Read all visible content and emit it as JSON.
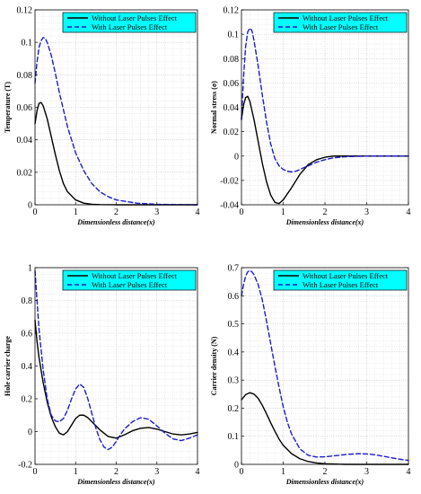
{
  "chart_data": [
    {
      "type": "line",
      "xlabel": "Dimensionless distance(x)",
      "ylabel": "Temperature (T)",
      "xlim": [
        0,
        4
      ],
      "ylim": [
        0,
        0.12
      ],
      "xticks": [
        "0",
        "1",
        "2",
        "3",
        "4"
      ],
      "yticks": [
        "0",
        "0.02",
        "0.04",
        "0.06",
        "0.08",
        "0.1",
        "0.12"
      ],
      "grid": true,
      "legend_position": "top-right",
      "series": [
        {
          "name": "Without Laser Pulses Effect",
          "style": "solid",
          "color": "#000000",
          "x": [
            0,
            0.05,
            0.1,
            0.15,
            0.2,
            0.3,
            0.4,
            0.5,
            0.6,
            0.7,
            0.8,
            1.0,
            1.2,
            1.4,
            1.6,
            2.0,
            3.0,
            4.0
          ],
          "y": [
            0.05,
            0.058,
            0.0625,
            0.063,
            0.061,
            0.053,
            0.042,
            0.031,
            0.021,
            0.013,
            0.008,
            0.003,
            0.001,
            0.0003,
            0.0001,
            0,
            0,
            0
          ]
        },
        {
          "name": "With Laser Pulses Effect",
          "style": "dashed",
          "color": "#1c1ccc",
          "x": [
            0,
            0.05,
            0.1,
            0.15,
            0.2,
            0.25,
            0.3,
            0.4,
            0.5,
            0.6,
            0.8,
            1.0,
            1.2,
            1.4,
            1.6,
            1.8,
            2.0,
            2.5,
            3.0,
            3.5,
            4.0
          ],
          "y": [
            0.075,
            0.088,
            0.097,
            0.101,
            0.103,
            0.1025,
            0.1,
            0.092,
            0.081,
            0.069,
            0.048,
            0.032,
            0.021,
            0.013,
            0.008,
            0.005,
            0.003,
            0.001,
            0.0003,
            0.0001,
            0
          ]
        }
      ]
    },
    {
      "type": "line",
      "xlabel": "Dimensionless distance(x)",
      "ylabel": "Normal stress (σ)",
      "xlim": [
        0,
        4
      ],
      "ylim": [
        -0.04,
        0.12
      ],
      "xticks": [
        "0",
        "1",
        "2",
        "3",
        "4"
      ],
      "yticks": [
        "-0.04",
        "-0.02",
        "0",
        "0.02",
        "0.04",
        "0.06",
        "0.08",
        "0.1",
        "0.12"
      ],
      "grid": true,
      "legend_position": "top-right",
      "series": [
        {
          "name": "Without Laser Pulses Effect",
          "style": "solid",
          "color": "#000000",
          "x": [
            0,
            0.05,
            0.1,
            0.15,
            0.2,
            0.3,
            0.4,
            0.5,
            0.6,
            0.7,
            0.8,
            0.9,
            1.0,
            1.2,
            1.4,
            1.6,
            1.8,
            2.0,
            2.2,
            2.5,
            3.0,
            4.0
          ],
          "y": [
            0.03,
            0.042,
            0.048,
            0.049,
            0.045,
            0.03,
            0.012,
            -0.006,
            -0.021,
            -0.032,
            -0.038,
            -0.039,
            -0.036,
            -0.026,
            -0.015,
            -0.007,
            -0.003,
            -0.001,
            0,
            0,
            0,
            0
          ]
        },
        {
          "name": "With Laser Pulses Effect",
          "style": "dashed",
          "color": "#1c1ccc",
          "x": [
            0,
            0.05,
            0.1,
            0.15,
            0.2,
            0.25,
            0.3,
            0.4,
            0.5,
            0.6,
            0.7,
            0.8,
            0.9,
            1.0,
            1.1,
            1.2,
            1.3,
            1.4,
            1.6,
            1.8,
            2.0,
            2.2,
            2.5,
            3.0,
            4.0
          ],
          "y": [
            0.03,
            0.065,
            0.09,
            0.102,
            0.105,
            0.103,
            0.095,
            0.074,
            0.05,
            0.028,
            0.01,
            -0.002,
            -0.008,
            -0.011,
            -0.0125,
            -0.013,
            -0.0125,
            -0.011,
            -0.008,
            -0.005,
            -0.003,
            -0.0015,
            -0.0005,
            0,
            0
          ]
        }
      ]
    },
    {
      "type": "line",
      "xlabel": "Dimensionless distance(x)",
      "ylabel": "Hole carrier charge",
      "xlim": [
        0,
        4
      ],
      "ylim": [
        -0.2,
        1
      ],
      "xticks": [
        "0",
        "1",
        "2",
        "3",
        "4"
      ],
      "yticks": [
        "-0.2",
        "0",
        "0.2",
        "0.4",
        "0.6",
        "0.8",
        "1"
      ],
      "grid": true,
      "legend_position": "top-right",
      "series": [
        {
          "name": "Without Laser Pulses Effect",
          "style": "solid",
          "color": "#000000",
          "x": [
            0,
            0.05,
            0.1,
            0.2,
            0.3,
            0.4,
            0.5,
            0.6,
            0.7,
            0.8,
            0.9,
            1.0,
            1.1,
            1.2,
            1.3,
            1.4,
            1.6,
            1.8,
            2.0,
            2.2,
            2.4,
            2.6,
            2.8,
            3.0,
            3.2,
            3.4,
            3.6,
            3.8,
            4.0
          ],
          "y": [
            0.68,
            0.55,
            0.45,
            0.3,
            0.18,
            0.09,
            0.03,
            -0.01,
            -0.02,
            0.0,
            0.04,
            0.08,
            0.1,
            0.1,
            0.085,
            0.06,
            0.01,
            -0.03,
            -0.04,
            -0.02,
            0.005,
            0.02,
            0.025,
            0.015,
            0.0,
            -0.015,
            -0.02,
            -0.015,
            -0.005
          ]
        },
        {
          "name": "With Laser Pulses Effect",
          "style": "dashed",
          "color": "#1c1ccc",
          "x": [
            0,
            0.05,
            0.1,
            0.2,
            0.3,
            0.4,
            0.5,
            0.6,
            0.7,
            0.8,
            0.9,
            1.0,
            1.1,
            1.2,
            1.3,
            1.4,
            1.5,
            1.6,
            1.7,
            1.8,
            1.9,
            2.0,
            2.1,
            2.2,
            2.4,
            2.6,
            2.8,
            3.0,
            3.2,
            3.4,
            3.6,
            3.8,
            4.0
          ],
          "y": [
            0.98,
            0.8,
            0.62,
            0.38,
            0.2,
            0.1,
            0.065,
            0.06,
            0.08,
            0.13,
            0.2,
            0.26,
            0.29,
            0.27,
            0.2,
            0.11,
            0.02,
            -0.05,
            -0.095,
            -0.11,
            -0.095,
            -0.06,
            -0.02,
            0.015,
            0.06,
            0.085,
            0.075,
            0.035,
            -0.01,
            -0.045,
            -0.055,
            -0.04,
            -0.02
          ]
        }
      ]
    },
    {
      "type": "line",
      "xlabel": "Dimensionless distance(x)",
      "ylabel": "Carrier density (N)",
      "xlim": [
        0,
        4
      ],
      "ylim": [
        0,
        0.7
      ],
      "xticks": [
        "0",
        "1",
        "2",
        "3",
        "4"
      ],
      "yticks": [
        "0",
        "0.1",
        "0.2",
        "0.3",
        "0.4",
        "0.5",
        "0.6",
        "0.7"
      ],
      "grid": true,
      "legend_position": "top-right",
      "series": [
        {
          "name": "Without Laser Pulses Effect",
          "style": "solid",
          "color": "#000000",
          "x": [
            0,
            0.1,
            0.2,
            0.3,
            0.4,
            0.5,
            0.6,
            0.7,
            0.8,
            0.9,
            1.0,
            1.2,
            1.4,
            1.6,
            1.8,
            2.0,
            2.5,
            3.0,
            3.5,
            4.0
          ],
          "y": [
            0.23,
            0.248,
            0.255,
            0.25,
            0.235,
            0.21,
            0.18,
            0.148,
            0.118,
            0.09,
            0.068,
            0.038,
            0.02,
            0.01,
            0.005,
            0.002,
            0,
            0,
            0,
            0
          ]
        },
        {
          "name": "With Laser Pulses Effect",
          "style": "dashed",
          "color": "#1c1ccc",
          "x": [
            0,
            0.05,
            0.1,
            0.15,
            0.2,
            0.25,
            0.3,
            0.4,
            0.5,
            0.6,
            0.7,
            0.8,
            0.9,
            1.0,
            1.1,
            1.2,
            1.4,
            1.6,
            1.8,
            2.0,
            2.2,
            2.5,
            2.8,
            3.0,
            3.2,
            3.5,
            3.8,
            4.0
          ],
          "y": [
            0.6,
            0.64,
            0.67,
            0.685,
            0.69,
            0.685,
            0.675,
            0.64,
            0.585,
            0.51,
            0.43,
            0.35,
            0.275,
            0.205,
            0.15,
            0.108,
            0.055,
            0.032,
            0.026,
            0.027,
            0.03,
            0.035,
            0.038,
            0.037,
            0.034,
            0.026,
            0.018,
            0.014
          ]
        }
      ]
    }
  ]
}
